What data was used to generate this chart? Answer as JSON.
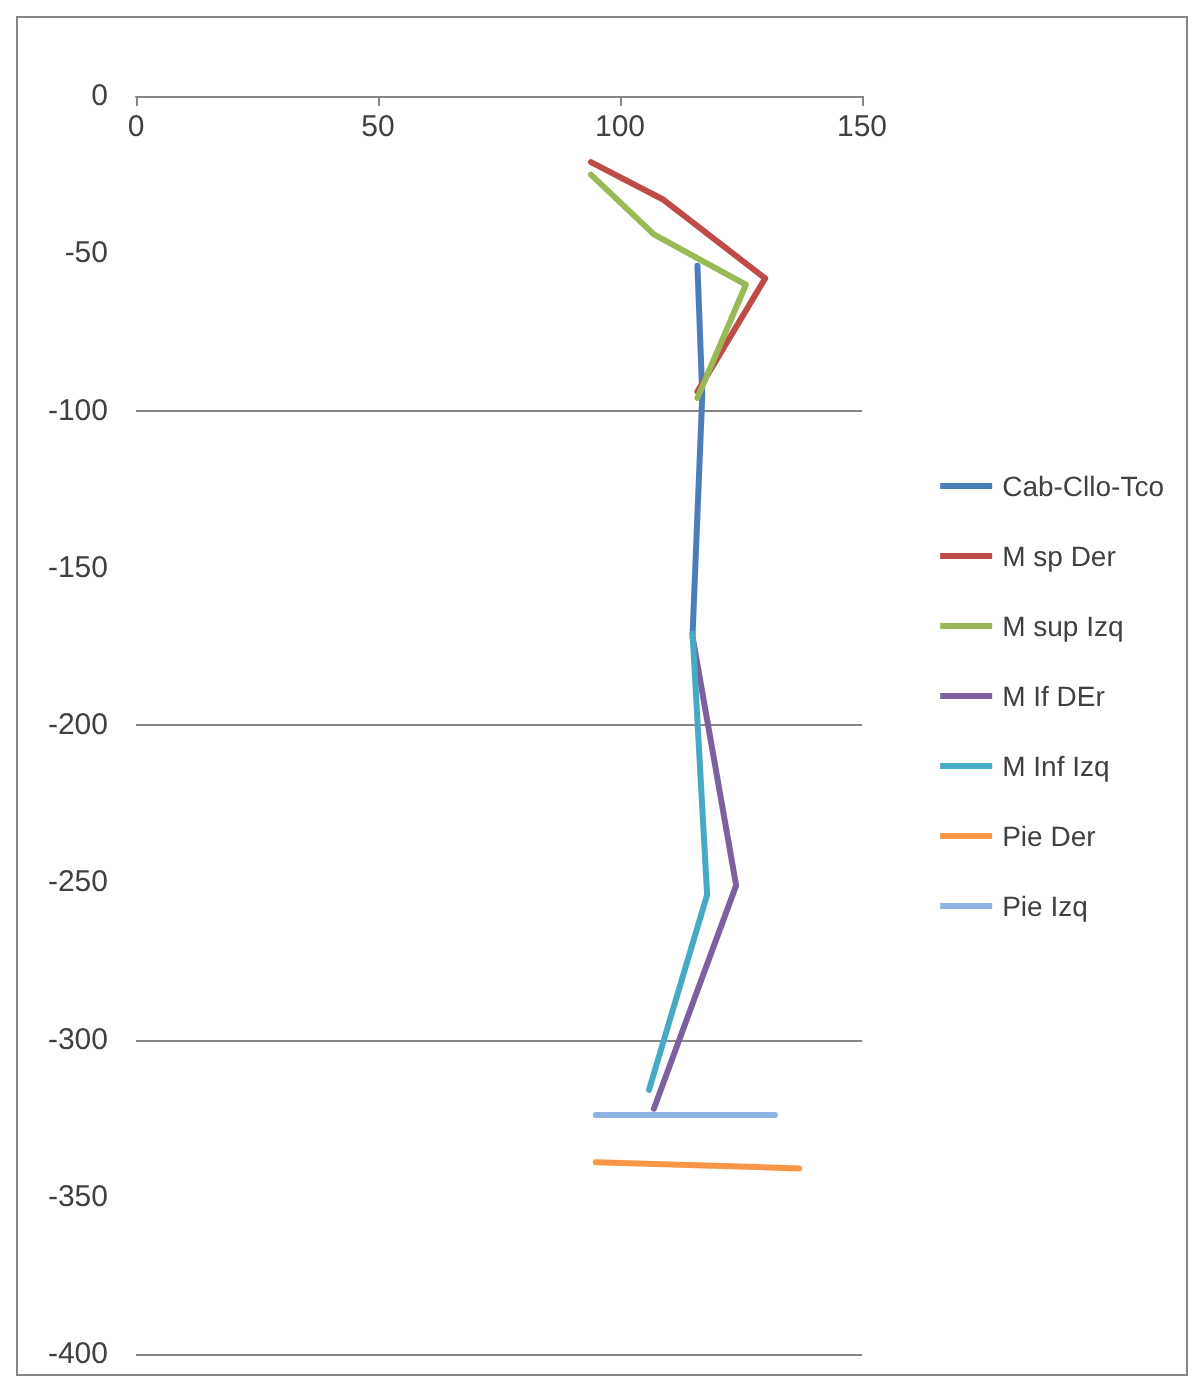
{
  "chart_data": {
    "type": "line",
    "xlim": [
      0,
      150
    ],
    "xticks": [
      0,
      50,
      100,
      150
    ],
    "ylim": [
      -400,
      0
    ],
    "yticks": [
      -400,
      -350,
      -300,
      -250,
      -200,
      -150,
      -100,
      -50,
      0
    ],
    "grid": "y",
    "legend": "right",
    "marker": "none",
    "line_style": "solid",
    "series": [
      {
        "name": "Cab-Cllo-Tco",
        "color": "#4a7ebb",
        "x": [
          116,
          117,
          115
        ],
        "values": [
          -54,
          -95,
          -171
        ]
      },
      {
        "name": "M sp Der",
        "color": "#be4b48",
        "x": [
          94,
          109,
          130,
          116
        ],
        "values": [
          -21,
          -33,
          -58,
          -94
        ]
      },
      {
        "name": "M sup Izq",
        "color": "#98b954",
        "x": [
          94,
          107,
          126,
          116
        ],
        "values": [
          -25,
          -44,
          -60,
          -96
        ]
      },
      {
        "name": "M If DEr",
        "color": "#7d60a0",
        "x": [
          115,
          124,
          107
        ],
        "values": [
          -172,
          -251,
          -322
        ]
      },
      {
        "name": "M Inf Izq",
        "color": "#46aac5",
        "x": [
          115,
          118,
          106
        ],
        "values": [
          -171,
          -254,
          -316
        ]
      },
      {
        "name": "Pie Der",
        "color": "#f79646",
        "x": [
          95,
          137
        ],
        "values": [
          -339,
          -341
        ]
      },
      {
        "name": "Pie Izq",
        "color": "#8eb4e3",
        "x": [
          95,
          132
        ],
        "values": [
          -324,
          -324
        ]
      }
    ]
  }
}
